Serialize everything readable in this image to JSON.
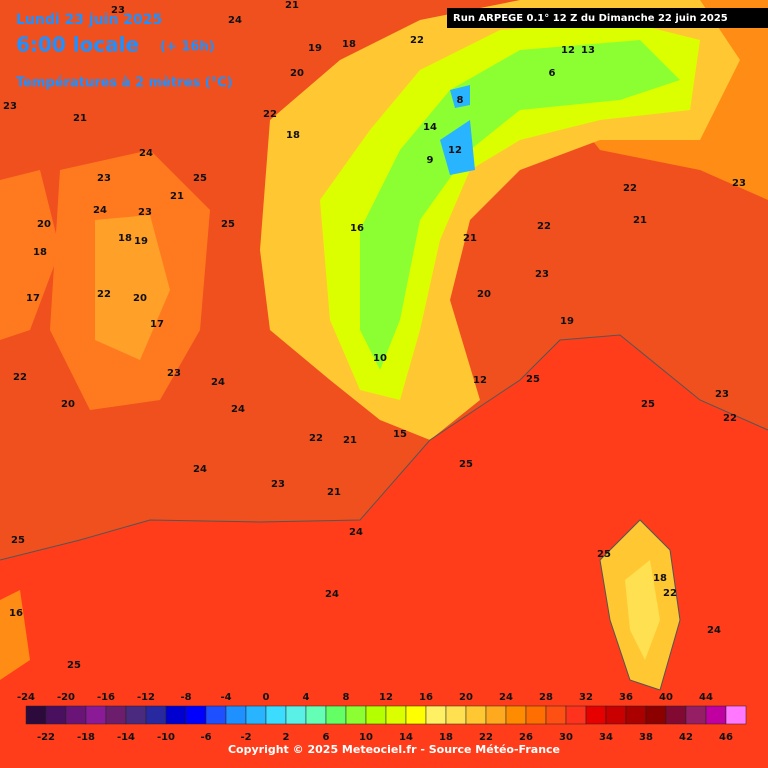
{
  "header": {
    "date": "Lundi 23 juin 2025",
    "time": "6:00 locale",
    "lead": "(+ 16h)",
    "parameter": "Températures à 2 mètres (°C)",
    "run": "Run ARPEGE 0.1° 12 Z du Dimanche 22 juin 2025"
  },
  "map": {
    "labels": [
      24,
      23,
      21,
      19,
      18,
      22,
      20,
      22,
      18,
      23,
      21,
      23,
      24,
      25,
      21,
      24,
      20,
      23,
      25,
      18,
      19,
      18,
      22,
      17,
      20,
      17,
      22,
      24,
      24,
      23,
      20,
      22,
      21,
      15,
      24,
      23,
      21,
      24,
      25,
      25,
      25,
      22,
      23,
      20,
      19,
      21,
      22,
      21,
      23,
      16,
      25,
      25,
      24,
      25,
      18,
      22,
      24,
      12,
      10,
      16,
      14,
      12,
      8,
      9,
      6,
      12,
      13,
      22,
      23
    ]
  },
  "colorbar": {
    "top_labels": [
      -24,
      -20,
      -16,
      -12,
      -8,
      -4,
      0,
      4,
      8,
      12,
      16,
      20,
      24,
      28,
      32,
      36,
      40,
      44
    ],
    "bottom_labels": [
      -22,
      -18,
      -14,
      -10,
      -6,
      -2,
      2,
      6,
      10,
      14,
      18,
      22,
      26,
      30,
      34,
      38,
      42,
      46
    ],
    "colors": [
      "#2d0a3c",
      "#4a1060",
      "#6b1478",
      "#8b1a96",
      "#6c1e6c",
      "#4a2a7e",
      "#2828a0",
      "#0000d0",
      "#0000ff",
      "#1e50ff",
      "#1e90ff",
      "#28b4ff",
      "#3cdcff",
      "#5af0e6",
      "#64ffb4",
      "#64ff64",
      "#8cff32",
      "#b4ff00",
      "#dcff00",
      "#ffff00",
      "#fff064",
      "#ffe050",
      "#ffc832",
      "#ffaa1e",
      "#ff8c00",
      "#ff6e00",
      "#ff5014",
      "#ff321e",
      "#e60000",
      "#c80000",
      "#aa0000",
      "#8c0000",
      "#820a32",
      "#961e64",
      "#c000a0",
      "#ff78ff"
    ]
  },
  "footer": {
    "copyright": "Copyright © 2025 Meteociel.fr - Source Météo-France"
  }
}
